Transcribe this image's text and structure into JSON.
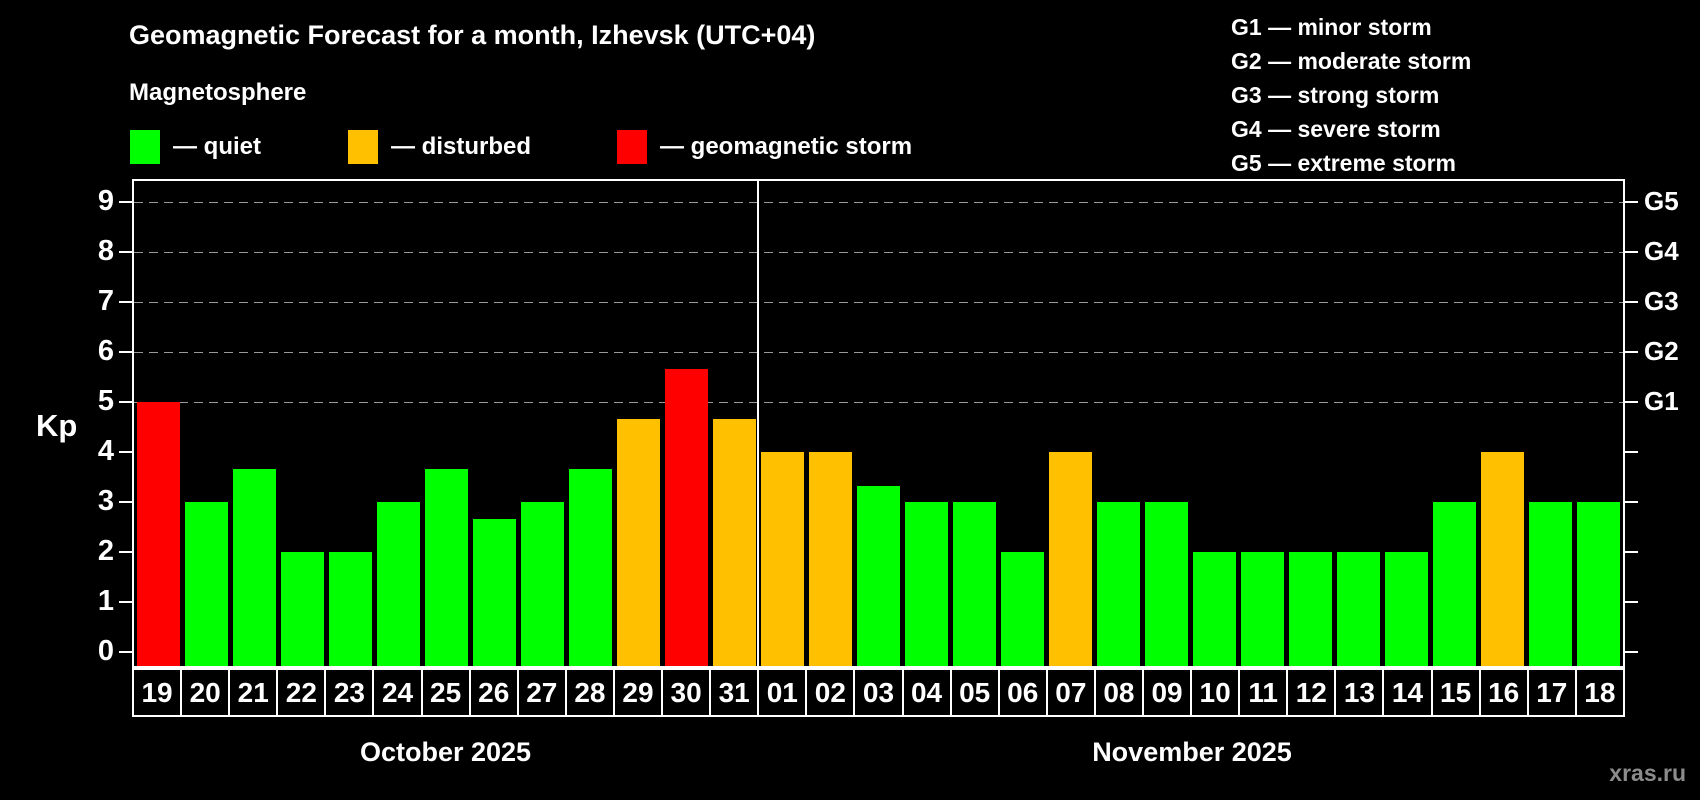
{
  "header": {
    "title": "Geomagnetic Forecast for a month, Izhevsk (UTC+04)",
    "subtitle": "Magnetosphere"
  },
  "legend": {
    "items": [
      {
        "level": "quiet",
        "label": "— quiet"
      },
      {
        "level": "disturbed",
        "label": "— disturbed"
      },
      {
        "level": "storm",
        "label": "— geomagnetic storm"
      }
    ]
  },
  "g_scale": {
    "items": [
      {
        "label": "G1 — minor storm"
      },
      {
        "label": "G2 — moderate storm"
      },
      {
        "label": "G3 — strong storm"
      },
      {
        "label": "G4 — severe storm"
      },
      {
        "label": "G5 — extreme storm"
      }
    ]
  },
  "colors": {
    "quiet": "#00ff00",
    "disturbed": "#ffc000",
    "storm": "#ff0000",
    "axis": "#ffffff",
    "grid": "#999999",
    "background": "#000000",
    "watermark": "#8c8c8c"
  },
  "watermark": "xras.ru",
  "chart_data": {
    "type": "bar",
    "title": "Geomagnetic Forecast for a month, Izhevsk (UTC+04)",
    "ylabel": "Kp",
    "ylim": [
      0,
      9
    ],
    "yticks": [
      0,
      1,
      2,
      3,
      4,
      5,
      6,
      7,
      8,
      9
    ],
    "grid": {
      "dashed_at": [
        5,
        6,
        7,
        8,
        9
      ]
    },
    "right_axis": [
      {
        "value": 5,
        "label": "G1"
      },
      {
        "value": 6,
        "label": "G2"
      },
      {
        "value": 7,
        "label": "G3"
      },
      {
        "value": 8,
        "label": "G4"
      },
      {
        "value": 9,
        "label": "G5"
      }
    ],
    "months": [
      {
        "label": "October 2025",
        "days": [
          {
            "day": "19",
            "kp": 5.0,
            "level": "storm"
          },
          {
            "day": "20",
            "kp": 3.0,
            "level": "quiet"
          },
          {
            "day": "21",
            "kp": 3.67,
            "level": "quiet"
          },
          {
            "day": "22",
            "kp": 2.0,
            "level": "quiet"
          },
          {
            "day": "23",
            "kp": 2.0,
            "level": "quiet"
          },
          {
            "day": "24",
            "kp": 3.0,
            "level": "quiet"
          },
          {
            "day": "25",
            "kp": 3.67,
            "level": "quiet"
          },
          {
            "day": "26",
            "kp": 2.67,
            "level": "quiet"
          },
          {
            "day": "27",
            "kp": 3.0,
            "level": "quiet"
          },
          {
            "day": "28",
            "kp": 3.67,
            "level": "quiet"
          },
          {
            "day": "29",
            "kp": 4.67,
            "level": "disturbed"
          },
          {
            "day": "30",
            "kp": 5.67,
            "level": "storm"
          },
          {
            "day": "31",
            "kp": 4.67,
            "level": "disturbed"
          }
        ]
      },
      {
        "label": "November 2025",
        "days": [
          {
            "day": "01",
            "kp": 4.0,
            "level": "disturbed"
          },
          {
            "day": "02",
            "kp": 4.0,
            "level": "disturbed"
          },
          {
            "day": "03",
            "kp": 3.33,
            "level": "quiet"
          },
          {
            "day": "04",
            "kp": 3.0,
            "level": "quiet"
          },
          {
            "day": "05",
            "kp": 3.0,
            "level": "quiet"
          },
          {
            "day": "06",
            "kp": 2.0,
            "level": "quiet"
          },
          {
            "day": "07",
            "kp": 4.0,
            "level": "disturbed"
          },
          {
            "day": "08",
            "kp": 3.0,
            "level": "quiet"
          },
          {
            "day": "09",
            "kp": 3.0,
            "level": "quiet"
          },
          {
            "day": "10",
            "kp": 2.0,
            "level": "quiet"
          },
          {
            "day": "11",
            "kp": 2.0,
            "level": "quiet"
          },
          {
            "day": "12",
            "kp": 2.0,
            "level": "quiet"
          },
          {
            "day": "13",
            "kp": 2.0,
            "level": "quiet"
          },
          {
            "day": "14",
            "kp": 2.0,
            "level": "quiet"
          },
          {
            "day": "15",
            "kp": 3.0,
            "level": "quiet"
          },
          {
            "day": "16",
            "kp": 4.0,
            "level": "disturbed"
          },
          {
            "day": "17",
            "kp": 3.0,
            "level": "quiet"
          },
          {
            "day": "18",
            "kp": 3.0,
            "level": "quiet"
          }
        ]
      }
    ]
  }
}
